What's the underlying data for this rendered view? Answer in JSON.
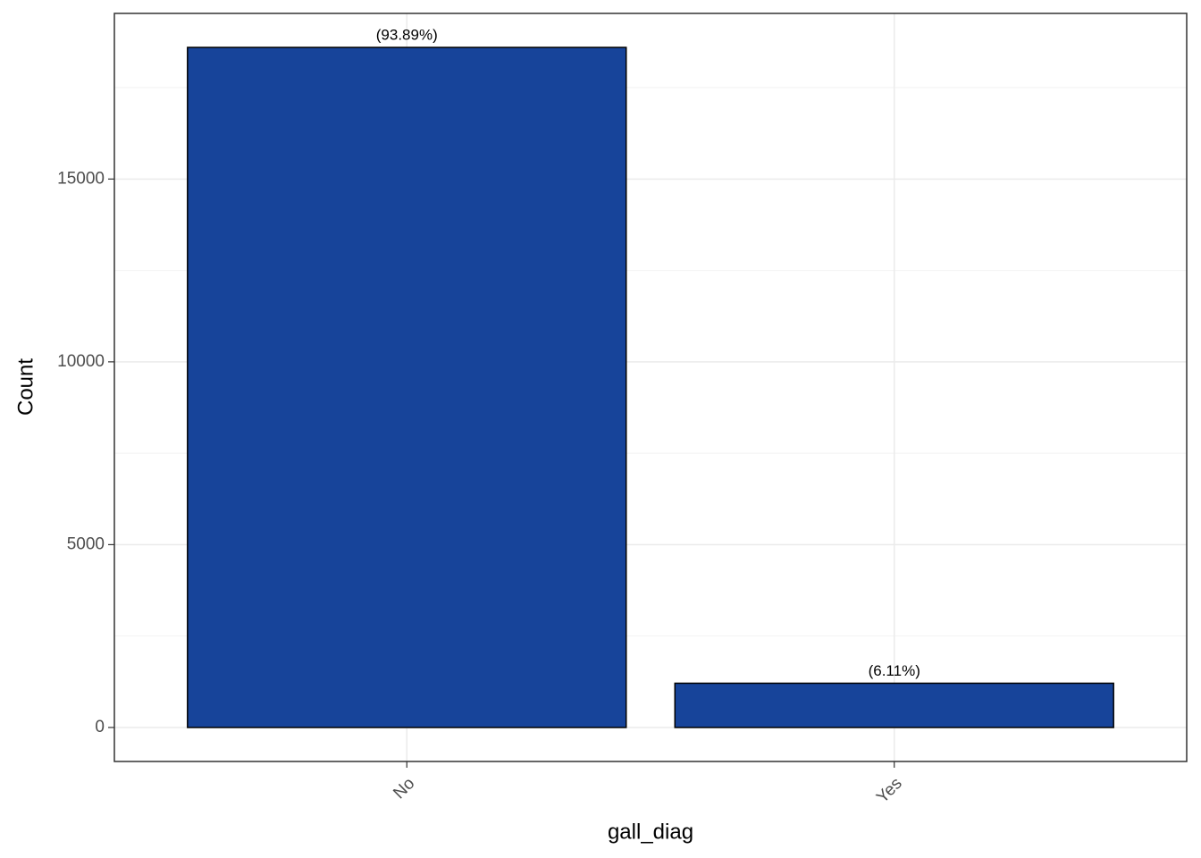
{
  "chart_data": {
    "type": "bar",
    "x_label": "gall_diag",
    "y_label": "Count",
    "categories": [
      "No",
      "Yes"
    ],
    "values": [
      18600,
      1210
    ],
    "percentages": [
      93.89,
      6.11
    ],
    "percentage_labels": [
      "(93.89%)",
      "(6.11%)"
    ],
    "color": "#17449a",
    "edge_color": "#000000",
    "ylim": [
      -930,
      19530
    ],
    "yticks": [
      0,
      5000,
      10000,
      15000
    ],
    "grid": true
  }
}
